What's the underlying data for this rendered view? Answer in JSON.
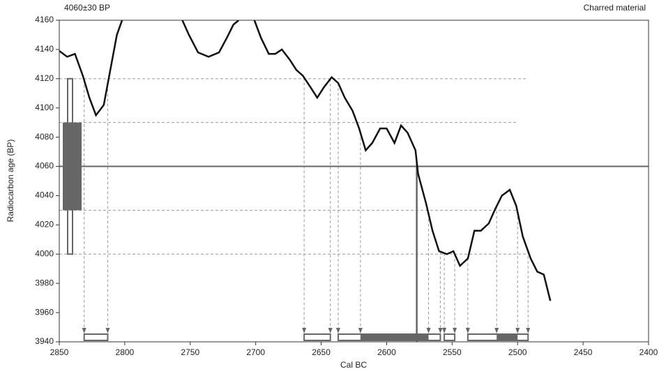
{
  "chart_data": {
    "type": "calibration",
    "title_left": "4060±30 BP",
    "title_right": "Charred material",
    "x_label": "Cal BC",
    "y_label": "Radiocarbon age (BP)",
    "xlim": [
      2850,
      2400
    ],
    "ylim": [
      3940,
      4160
    ],
    "xticks": [
      2850,
      2800,
      2750,
      2700,
      2650,
      2600,
      2550,
      2500,
      2450,
      2400
    ],
    "yticks": [
      3940,
      3960,
      3980,
      4000,
      4020,
      4040,
      4060,
      4080,
      4100,
      4120,
      4140,
      4160
    ],
    "measurement": 4060,
    "one_sigma": [
      4030,
      4090
    ],
    "two_sigma": [
      4000,
      4120
    ],
    "median": 2577,
    "curve": {
      "color": "#111111",
      "x": [
        2850,
        2844,
        2838,
        2832,
        2827,
        2822,
        2816,
        2811,
        2806,
        2802,
        2780,
        2756,
        2751,
        2744,
        2736,
        2728,
        2722,
        2717,
        2713,
        2707,
        2701,
        2696,
        2690,
        2685,
        2680,
        2674,
        2669,
        2664,
        2658,
        2653,
        2648,
        2642,
        2637,
        2632,
        2626,
        2621,
        2616,
        2611,
        2605,
        2600,
        2594,
        2589,
        2584,
        2578,
        2576,
        2570,
        2565,
        2560,
        2554,
        2549,
        2544,
        2538,
        2533,
        2528,
        2522,
        2517,
        2512,
        2506,
        2501,
        2496,
        2490,
        2485,
        2480,
        2475
      ],
      "values": [
        4139,
        4135,
        4137,
        4122,
        4107,
        4095,
        4102,
        4126,
        4150,
        4160,
        null,
        4160,
        4150,
        4138,
        4135,
        4138,
        4148,
        4157,
        4160,
        null,
        4160,
        4148,
        4137,
        4137,
        4140,
        4133,
        4126,
        4122,
        4114,
        4107,
        4114,
        4121,
        4117,
        4107,
        4098,
        4086,
        4071,
        4076,
        4086,
        4086,
        4076,
        4088,
        4083,
        4071,
        4055,
        4035,
        4016,
        4002,
        4000,
        4002,
        3992,
        3997,
        4016,
        4016,
        4021,
        4031,
        4040,
        4044,
        4033,
        4012,
        3997,
        3988,
        3986,
        3968
      ]
    },
    "one_sigma_ranges": [
      [
        2620,
        2568
      ],
      [
        2516,
        2500
      ]
    ],
    "two_sigma_ranges": [
      [
        2831,
        2813
      ],
      [
        2663,
        2643
      ],
      [
        2637,
        2559
      ],
      [
        2556,
        2548
      ],
      [
        2538,
        2492
      ]
    ],
    "color": "#666666"
  }
}
